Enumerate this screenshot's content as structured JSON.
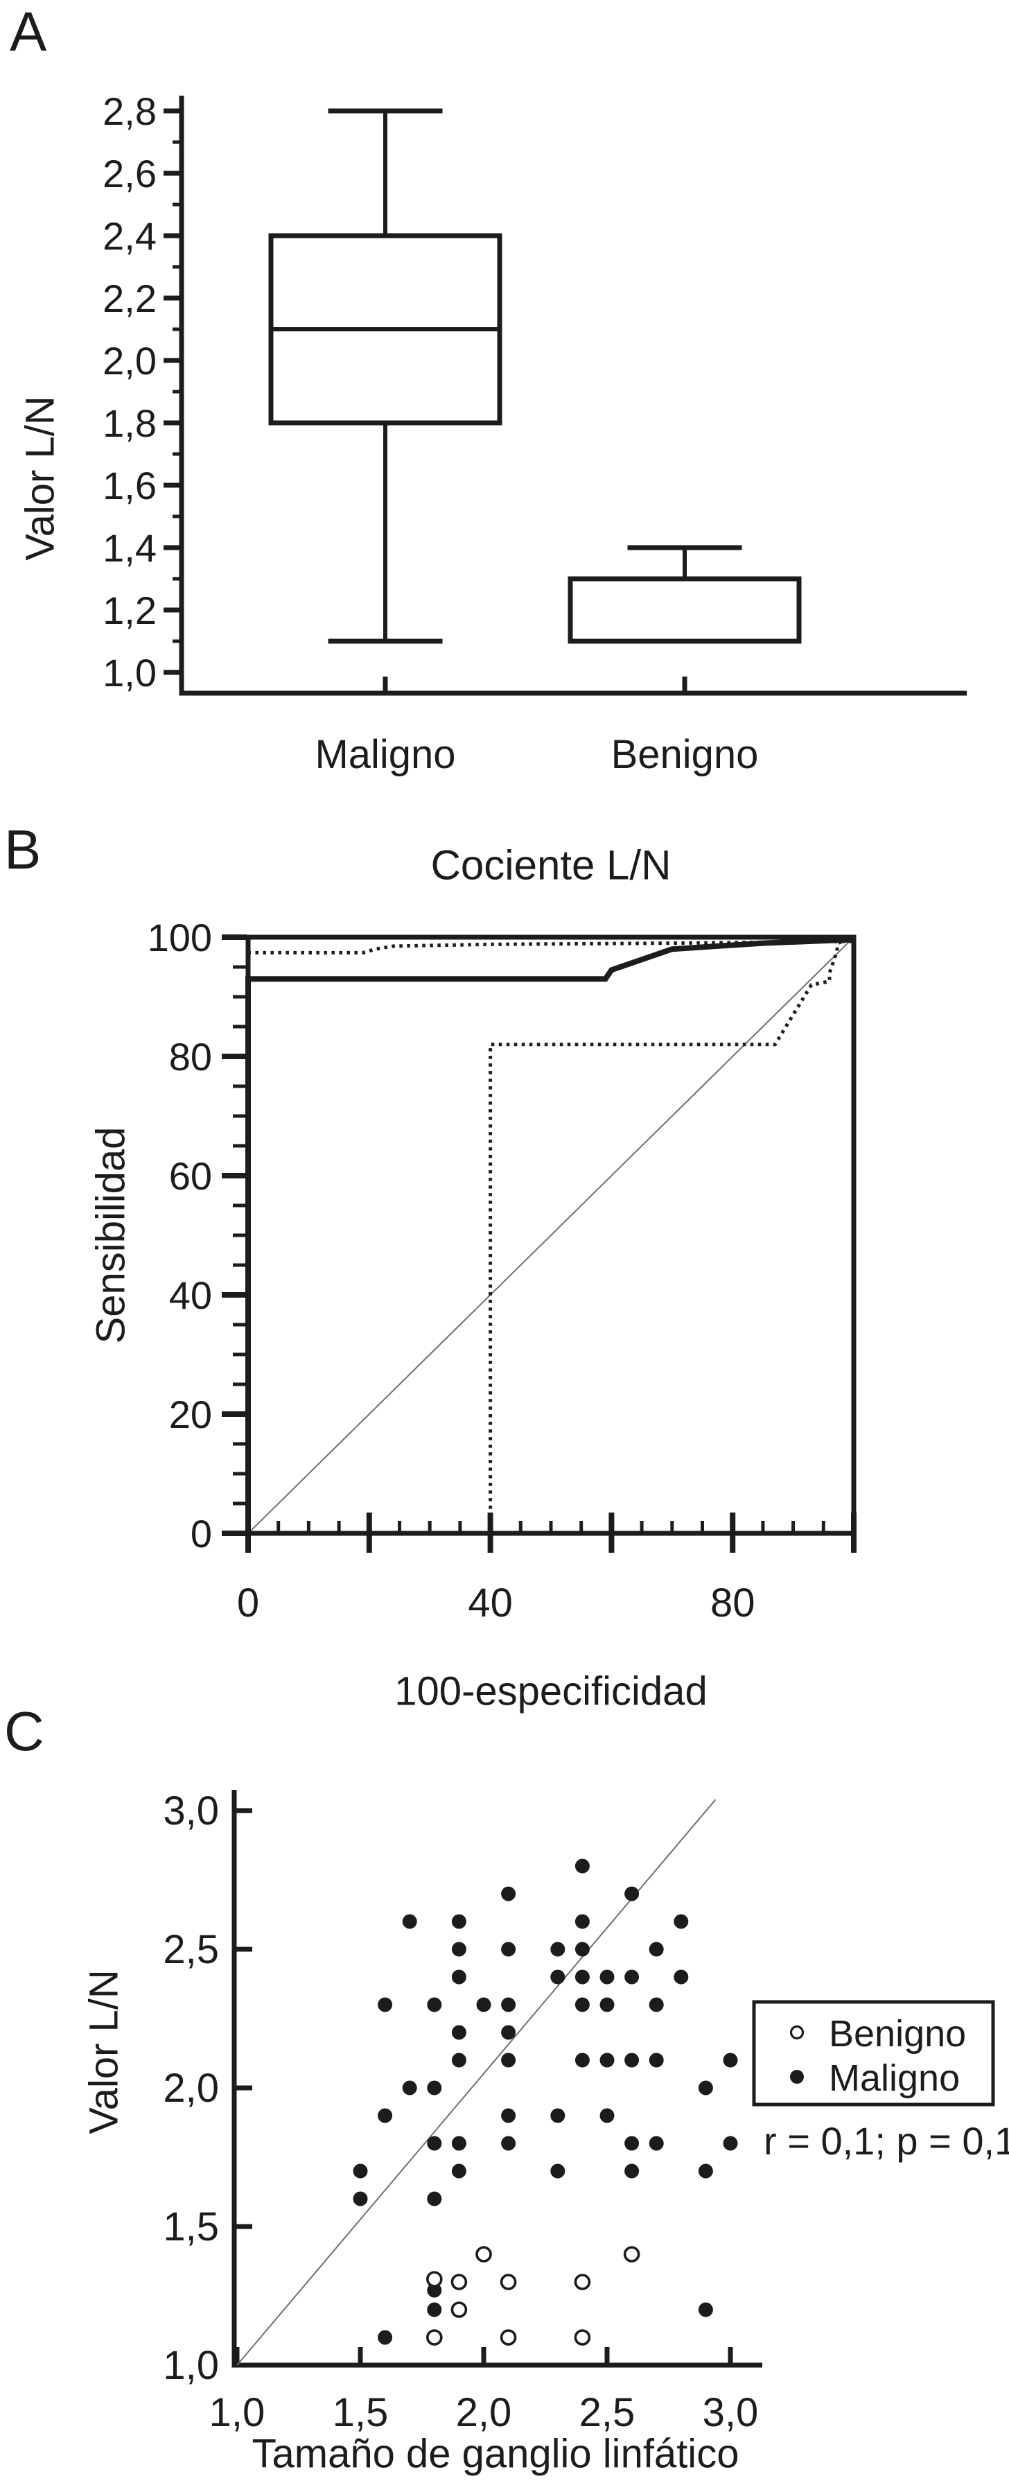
{
  "figure": {
    "background": "#ffffff",
    "ink_color": "#1c1c1c",
    "reference_line_color": "#6f6f6f"
  },
  "chart_data": [
    {
      "id": "panel-a",
      "panel_label": "A",
      "type": "box",
      "title": "",
      "xlabel": "",
      "ylabel": "Valor L/N",
      "ylim": [
        0.93,
        2.87
      ],
      "categories": [
        "Maligno",
        "Benigno"
      ],
      "y_ticks": {
        "major": [
          {
            "v": 1.0,
            "label": "1,0"
          },
          {
            "v": 1.2,
            "label": "1,2"
          },
          {
            "v": 1.4,
            "label": "1,4"
          },
          {
            "v": 1.6,
            "label": "1,6"
          },
          {
            "v": 1.8,
            "label": "1,8"
          },
          {
            "v": 2.0,
            "label": "2,0"
          },
          {
            "v": 2.2,
            "label": "2,2"
          },
          {
            "v": 2.4,
            "label": "2,4"
          },
          {
            "v": 2.6,
            "label": "2,6"
          },
          {
            "v": 2.8,
            "label": "2,8"
          }
        ],
        "minor": [
          1.1,
          1.3,
          1.5,
          1.7,
          1.9,
          2.1,
          2.3,
          2.5,
          2.7
        ]
      },
      "boxes": [
        {
          "category": "Maligno",
          "whisker_low": 1.1,
          "q1": 1.8,
          "median": 2.1,
          "q3": 2.4,
          "whisker_high": 2.8
        },
        {
          "category": "Benigno",
          "whisker_low": null,
          "q1": 1.1,
          "median": null,
          "q3": 1.3,
          "whisker_high": 1.4
        }
      ]
    },
    {
      "id": "panel-b",
      "panel_label": "B",
      "type": "line",
      "title": "Cociente L/N",
      "xlabel": "100-especificidad",
      "ylabel": "Sensibilidad",
      "xlim": [
        0,
        100
      ],
      "ylim": [
        0,
        100
      ],
      "x_ticks": {
        "major": [
          0,
          20,
          40,
          60,
          80,
          100
        ],
        "minor_step": 5,
        "labels": [
          {
            "v": 0,
            "label": "0"
          },
          {
            "v": 40,
            "label": "40"
          },
          {
            "v": 80,
            "label": "80"
          }
        ]
      },
      "y_ticks": {
        "major": [
          0,
          20,
          40,
          60,
          80,
          100
        ],
        "minor_step": 5,
        "labels": [
          {
            "v": 0,
            "label": "0"
          },
          {
            "v": 20,
            "label": "20"
          },
          {
            "v": 40,
            "label": "40"
          },
          {
            "v": 60,
            "label": "60"
          },
          {
            "v": 80,
            "label": "80"
          },
          {
            "v": 100,
            "label": "100"
          }
        ]
      },
      "series": [
        {
          "name": "Reference diagonal",
          "style": "reference",
          "points": [
            [
              0,
              0
            ],
            [
              100,
              100
            ]
          ]
        },
        {
          "name": "Upper 95% confidence band",
          "style": "dotted",
          "points": [
            [
              0,
              93.5
            ],
            [
              0,
              97.4
            ],
            [
              19,
              97.4
            ],
            [
              21,
              98.0
            ],
            [
              24,
              98.5
            ],
            [
              40,
              98.8
            ],
            [
              70,
              99.0
            ],
            [
              100,
              99.3
            ]
          ]
        },
        {
          "name": "Lower 95% confidence band",
          "style": "dotted",
          "points": [
            [
              0,
              0
            ],
            [
              40,
              0
            ],
            [
              40,
              82
            ],
            [
              87,
              82
            ],
            [
              88.5,
              84.5
            ],
            [
              90,
              87
            ],
            [
              91.5,
              89.5
            ],
            [
              93,
              92
            ],
            [
              96,
              92.6
            ],
            [
              96,
              94
            ],
            [
              97,
              97
            ],
            [
              97.5,
              99
            ],
            [
              98,
              99.3
            ]
          ]
        },
        {
          "name": "ROC curve",
          "style": "solid",
          "points": [
            [
              0,
              0
            ],
            [
              0,
              93
            ],
            [
              59,
              93
            ],
            [
              60,
              94.5
            ],
            [
              70,
              98
            ],
            [
              85,
              99
            ],
            [
              100,
              99.6
            ]
          ]
        }
      ]
    },
    {
      "id": "panel-c",
      "panel_label": "C",
      "type": "scatter",
      "title": "",
      "xlabel": "Tamaño de ganglio linfático",
      "ylabel": "Valor L/N",
      "xlim": [
        0.93,
        3.12
      ],
      "ylim": [
        0.95,
        3.08
      ],
      "x_ticks": {
        "major": [
          {
            "v": 1.0,
            "label": "1,0"
          },
          {
            "v": 1.5,
            "label": "1,5"
          },
          {
            "v": 2.0,
            "label": "2,0"
          },
          {
            "v": 2.5,
            "label": "2,5"
          },
          {
            "v": 3.0,
            "label": "3,0"
          }
        ]
      },
      "y_ticks": {
        "major": [
          {
            "v": 1.0,
            "label": "1,0"
          },
          {
            "v": 1.5,
            "label": "1,5"
          },
          {
            "v": 2.0,
            "label": "2,0"
          },
          {
            "v": 2.5,
            "label": "2,5"
          },
          {
            "v": 3.0,
            "label": "3,0"
          }
        ]
      },
      "legend": {
        "position": "right",
        "items": [
          {
            "label": "Benigno",
            "marker": "open"
          },
          {
            "label": "Maligno",
            "marker": "filled"
          }
        ]
      },
      "annotation": "r = 0,1; p = 0,1",
      "reference_line": [
        [
          1.0,
          1.0
        ],
        [
          2.94,
          3.04
        ]
      ],
      "series": [
        {
          "name": "Maligno",
          "marker": "filled",
          "points": [
            [
              2.4,
              2.8
            ],
            [
              2.1,
              2.7
            ],
            [
              2.6,
              2.7
            ],
            [
              1.7,
              2.6
            ],
            [
              1.9,
              2.6
            ],
            [
              2.4,
              2.6
            ],
            [
              2.8,
              2.6
            ],
            [
              1.9,
              2.5
            ],
            [
              2.1,
              2.5
            ],
            [
              2.3,
              2.5
            ],
            [
              2.4,
              2.5
            ],
            [
              2.7,
              2.5
            ],
            [
              1.9,
              2.4
            ],
            [
              2.3,
              2.4
            ],
            [
              2.4,
              2.4
            ],
            [
              2.5,
              2.4
            ],
            [
              2.6,
              2.4
            ],
            [
              2.8,
              2.4
            ],
            [
              1.6,
              2.3
            ],
            [
              1.8,
              2.3
            ],
            [
              2.0,
              2.3
            ],
            [
              2.1,
              2.3
            ],
            [
              2.4,
              2.3
            ],
            [
              2.5,
              2.3
            ],
            [
              2.7,
              2.3
            ],
            [
              1.9,
              2.2
            ],
            [
              2.1,
              2.2
            ],
            [
              1.9,
              2.1
            ],
            [
              2.1,
              2.1
            ],
            [
              2.4,
              2.1
            ],
            [
              2.5,
              2.1
            ],
            [
              2.6,
              2.1
            ],
            [
              2.7,
              2.1
            ],
            [
              3.0,
              2.1
            ],
            [
              1.7,
              2.0
            ],
            [
              1.8,
              2.0
            ],
            [
              2.9,
              2.0
            ],
            [
              1.6,
              1.9
            ],
            [
              2.1,
              1.9
            ],
            [
              2.3,
              1.9
            ],
            [
              2.5,
              1.9
            ],
            [
              1.8,
              1.8
            ],
            [
              1.9,
              1.8
            ],
            [
              2.1,
              1.8
            ],
            [
              2.6,
              1.8
            ],
            [
              2.7,
              1.8
            ],
            [
              3.0,
              1.8
            ],
            [
              1.5,
              1.7
            ],
            [
              1.9,
              1.7
            ],
            [
              2.3,
              1.7
            ],
            [
              2.6,
              1.7
            ],
            [
              2.9,
              1.7
            ],
            [
              1.5,
              1.6
            ],
            [
              1.8,
              1.6
            ],
            [
              1.8,
              1.27
            ],
            [
              1.8,
              1.2
            ],
            [
              2.9,
              1.2
            ],
            [
              1.6,
              1.1
            ]
          ]
        },
        {
          "name": "Benigno",
          "marker": "open",
          "points": [
            [
              2.0,
              1.4
            ],
            [
              2.6,
              1.4
            ],
            [
              1.8,
              1.31
            ],
            [
              1.9,
              1.3
            ],
            [
              2.1,
              1.3
            ],
            [
              2.4,
              1.3
            ],
            [
              1.9,
              1.2
            ],
            [
              1.8,
              1.1
            ],
            [
              2.1,
              1.1
            ],
            [
              2.4,
              1.1
            ]
          ]
        }
      ]
    }
  ]
}
